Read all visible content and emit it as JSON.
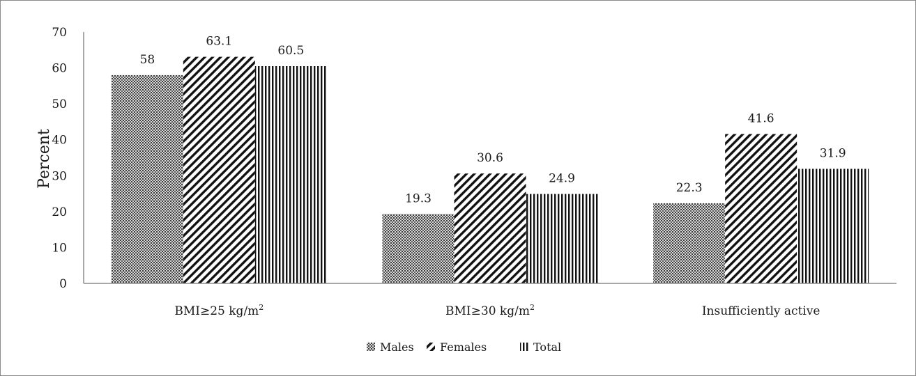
{
  "chart_data": {
    "type": "bar",
    "title": "",
    "xlabel": "",
    "ylabel": "Percent",
    "ylim": [
      0,
      70
    ],
    "yticks": [
      0,
      10,
      20,
      30,
      40,
      50,
      60,
      70
    ],
    "grid": false,
    "legend_position": "bottom-center",
    "categories": [
      {
        "base": "BMI≥25 kg/m",
        "sup": "2"
      },
      {
        "base": "BMI≥30 kg/m",
        "sup": "2"
      },
      {
        "base": "Insufficiently active",
        "sup": ""
      }
    ],
    "series": [
      {
        "name": "Males",
        "pattern": "dots",
        "values": [
          58,
          19.3,
          22.3
        ]
      },
      {
        "name": "Females",
        "pattern": "diagonal",
        "values": [
          63.1,
          30.6,
          41.6
        ]
      },
      {
        "name": "Total",
        "pattern": "vertical",
        "values": [
          60.5,
          24.9,
          31.9
        ]
      }
    ],
    "colors": {
      "ink": "#1a1a1a",
      "axis": "#8c8c8c"
    }
  }
}
